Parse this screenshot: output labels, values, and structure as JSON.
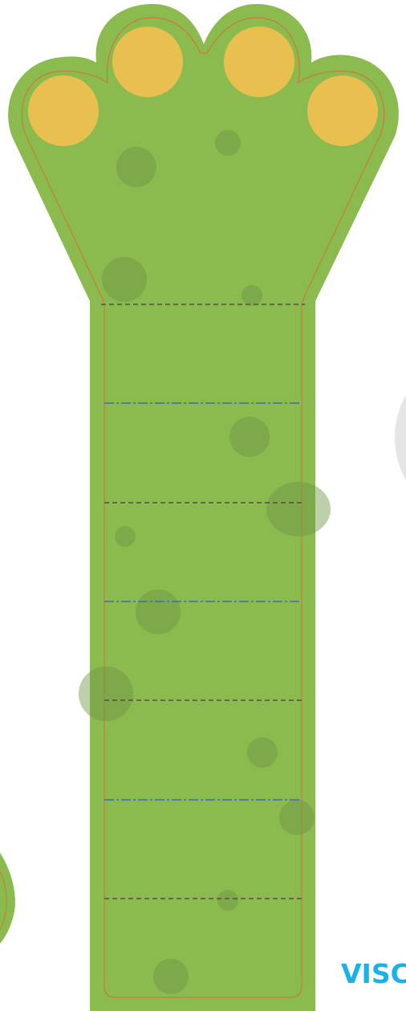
{
  "logo": {
    "text": "VISC"
  }
}
